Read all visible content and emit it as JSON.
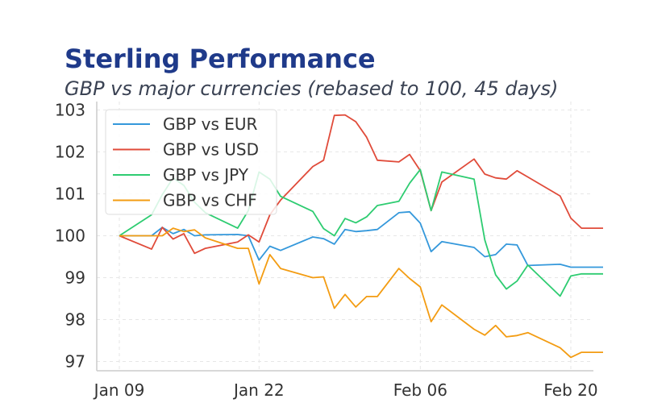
{
  "chart_data": {
    "type": "line",
    "title": "Sterling Performance",
    "subtitle": "GBP vs major currencies (rebased to 100, 45 days)",
    "xlabel": "",
    "ylabel": "",
    "x": [
      "2024-01-09",
      "2024-01-12",
      "2024-01-13",
      "2024-01-14",
      "2024-01-15",
      "2024-01-16",
      "2024-01-17",
      "2024-01-20",
      "2024-01-21",
      "2024-01-22",
      "2024-01-23",
      "2024-01-24",
      "2024-01-27",
      "2024-01-28",
      "2024-01-29",
      "2024-01-30",
      "2024-01-31",
      "2024-02-01",
      "2024-02-02",
      "2024-02-04",
      "2024-02-05",
      "2024-02-06",
      "2024-02-07",
      "2024-02-08",
      "2024-02-11",
      "2024-02-12",
      "2024-02-13",
      "2024-02-14",
      "2024-02-15",
      "2024-02-16",
      "2024-02-19",
      "2024-02-20",
      "2024-02-21",
      "2024-02-22",
      "2024-02-23"
    ],
    "series": [
      {
        "name": "GBP vs EUR",
        "color": "#3498db",
        "values": [
          100.0,
          100.0,
          100.2,
          100.05,
          100.15,
          100.0,
          100.02,
          100.03,
          100.0,
          99.42,
          99.75,
          99.65,
          99.97,
          99.93,
          99.8,
          100.15,
          100.1,
          100.12,
          100.15,
          100.55,
          100.57,
          100.3,
          99.62,
          99.86,
          99.72,
          99.5,
          99.55,
          99.8,
          99.78,
          99.29,
          99.32,
          99.25,
          99.25,
          99.25,
          99.25
        ]
      },
      {
        "name": "GBP vs USD",
        "color": "#e04b3a",
        "values": [
          100.0,
          99.68,
          100.2,
          99.92,
          100.05,
          99.58,
          99.7,
          99.85,
          100.02,
          99.85,
          100.5,
          100.85,
          101.65,
          101.8,
          102.87,
          102.88,
          102.72,
          102.35,
          101.8,
          101.76,
          101.94,
          101.55,
          100.6,
          101.28,
          101.83,
          101.47,
          101.38,
          101.35,
          101.55,
          101.4,
          100.95,
          100.42,
          100.18,
          100.18,
          100.18
        ]
      },
      {
        "name": "GBP vs JPY",
        "color": "#2ecc71",
        "values": [
          100.0,
          100.5,
          100.98,
          101.38,
          101.2,
          100.8,
          100.55,
          100.18,
          100.6,
          101.52,
          101.35,
          100.94,
          100.58,
          100.17,
          100.0,
          100.41,
          100.31,
          100.45,
          100.72,
          100.82,
          101.25,
          101.58,
          100.6,
          101.52,
          101.35,
          99.9,
          99.07,
          98.73,
          98.92,
          99.3,
          98.56,
          99.04,
          99.09,
          99.09,
          99.09
        ]
      },
      {
        "name": "GBP vs CHF",
        "color": "#f39c12",
        "values": [
          100.0,
          100.0,
          100.0,
          100.18,
          100.1,
          100.14,
          99.95,
          99.7,
          99.7,
          98.85,
          99.55,
          99.22,
          99.0,
          99.02,
          98.27,
          98.6,
          98.3,
          98.55,
          98.55,
          99.22,
          98.98,
          98.78,
          97.95,
          98.35,
          97.77,
          97.63,
          97.86,
          97.59,
          97.62,
          97.69,
          97.33,
          97.1,
          97.22,
          97.22,
          97.22
        ]
      }
    ],
    "ylim": [
      96.78,
      103.2
    ],
    "yticks": [
      "97",
      "98",
      "99",
      "100",
      "101",
      "102",
      "103"
    ],
    "xticks": [
      {
        "date": "2024-01-09",
        "label": "Jan 09"
      },
      {
        "date": "2024-01-22",
        "label": "Jan 22"
      },
      {
        "date": "2024-02-06",
        "label": "Feb 06"
      },
      {
        "date": "2024-02-20",
        "label": "Feb 20"
      }
    ],
    "grid": true,
    "legend": "top-left"
  }
}
